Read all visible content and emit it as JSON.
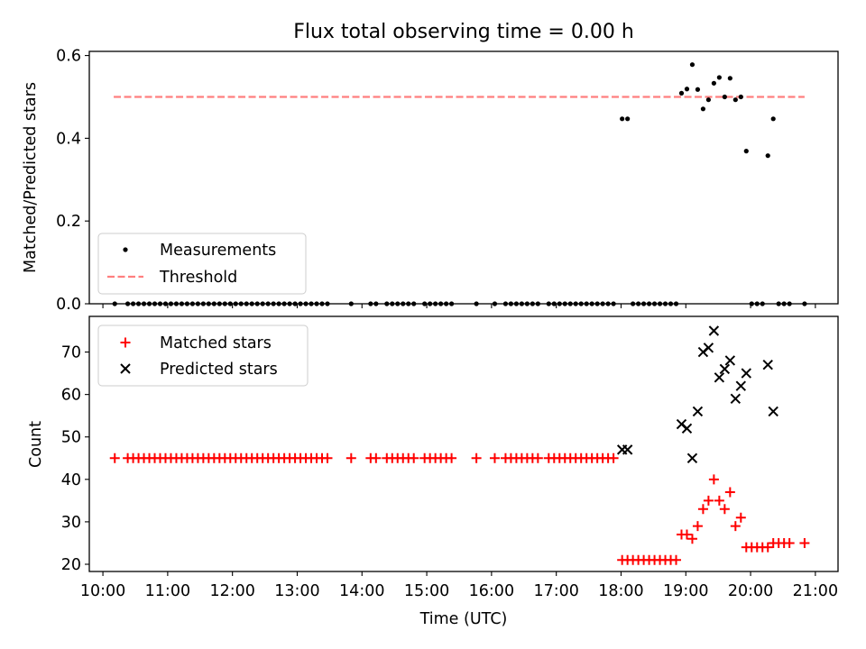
{
  "chart_data": [
    {
      "type": "scatter",
      "title": "Flux total observing time = 0.00 h",
      "ylabel": "Matched/Predicted stars",
      "ylim": [
        0,
        0.61
      ],
      "yticks": [
        0.0,
        0.2,
        0.4,
        0.6
      ],
      "ytick_labels": [
        "0.0",
        "0.2",
        "0.4",
        "0.6"
      ],
      "xlim_hours": [
        9.79,
        21.35
      ],
      "legend_position": "lower-left",
      "legend": {
        "measurements": "Measurements",
        "threshold": "Threshold"
      },
      "threshold": {
        "value": 0.5,
        "x_start": "10:10",
        "x_end": "20:50",
        "color": "#ff7f7f"
      },
      "measurement_color": "#000000",
      "measurements": [
        [
          "10:11",
          0.0
        ],
        [
          "10:23",
          0.0
        ],
        [
          "10:28",
          0.0
        ],
        [
          "10:33",
          0.0
        ],
        [
          "10:38",
          0.0
        ],
        [
          "10:43",
          0.0
        ],
        [
          "10:48",
          0.0
        ],
        [
          "10:53",
          0.0
        ],
        [
          "10:58",
          0.0
        ],
        [
          "11:03",
          0.0
        ],
        [
          "11:08",
          0.0
        ],
        [
          "11:13",
          0.0
        ],
        [
          "11:18",
          0.0
        ],
        [
          "11:23",
          0.0
        ],
        [
          "11:28",
          0.0
        ],
        [
          "11:33",
          0.0
        ],
        [
          "11:38",
          0.0
        ],
        [
          "11:43",
          0.0
        ],
        [
          "11:48",
          0.0
        ],
        [
          "11:53",
          0.0
        ],
        [
          "11:58",
          0.0
        ],
        [
          "12:03",
          0.0
        ],
        [
          "12:08",
          0.0
        ],
        [
          "12:13",
          0.0
        ],
        [
          "12:18",
          0.0
        ],
        [
          "12:23",
          0.0
        ],
        [
          "12:28",
          0.0
        ],
        [
          "12:33",
          0.0
        ],
        [
          "12:38",
          0.0
        ],
        [
          "12:43",
          0.0
        ],
        [
          "12:48",
          0.0
        ],
        [
          "12:53",
          0.0
        ],
        [
          "12:58",
          0.0
        ],
        [
          "13:03",
          0.0
        ],
        [
          "13:08",
          0.0
        ],
        [
          "13:13",
          0.0
        ],
        [
          "13:18",
          0.0
        ],
        [
          "13:23",
          0.0
        ],
        [
          "13:28",
          0.0
        ],
        [
          "13:50",
          0.0
        ],
        [
          "14:08",
          0.0
        ],
        [
          "14:13",
          0.0
        ],
        [
          "14:23",
          0.0
        ],
        [
          "14:28",
          0.0
        ],
        [
          "14:33",
          0.0
        ],
        [
          "14:38",
          0.0
        ],
        [
          "14:43",
          0.0
        ],
        [
          "14:48",
          0.0
        ],
        [
          "14:58",
          0.0
        ],
        [
          "15:03",
          0.0
        ],
        [
          "15:08",
          0.0
        ],
        [
          "15:13",
          0.0
        ],
        [
          "15:18",
          0.0
        ],
        [
          "15:23",
          0.0
        ],
        [
          "15:46",
          0.0
        ],
        [
          "16:03",
          0.0
        ],
        [
          "16:13",
          0.0
        ],
        [
          "16:18",
          0.0
        ],
        [
          "16:23",
          0.0
        ],
        [
          "16:28",
          0.0
        ],
        [
          "16:33",
          0.0
        ],
        [
          "16:38",
          0.0
        ],
        [
          "16:43",
          0.0
        ],
        [
          "16:53",
          0.0
        ],
        [
          "16:58",
          0.0
        ],
        [
          "17:03",
          0.0
        ],
        [
          "17:08",
          0.0
        ],
        [
          "17:13",
          0.0
        ],
        [
          "17:18",
          0.0
        ],
        [
          "17:23",
          0.0
        ],
        [
          "17:28",
          0.0
        ],
        [
          "17:33",
          0.0
        ],
        [
          "17:38",
          0.0
        ],
        [
          "17:43",
          0.0
        ],
        [
          "17:48",
          0.0
        ],
        [
          "17:53",
          0.0
        ],
        [
          "18:01",
          0.447
        ],
        [
          "18:06",
          0.447
        ],
        [
          "18:11",
          0.0
        ],
        [
          "18:16",
          0.0
        ],
        [
          "18:21",
          0.0
        ],
        [
          "18:26",
          0.0
        ],
        [
          "18:31",
          0.0
        ],
        [
          "18:36",
          0.0
        ],
        [
          "18:41",
          0.0
        ],
        [
          "18:46",
          0.0
        ],
        [
          "18:51",
          0.0
        ],
        [
          "18:56",
          0.509
        ],
        [
          "19:01",
          0.519
        ],
        [
          "19:06",
          0.578
        ],
        [
          "19:11",
          0.518
        ],
        [
          "19:16",
          0.471
        ],
        [
          "19:21",
          0.493
        ],
        [
          "19:26",
          0.533
        ],
        [
          "19:31",
          0.547
        ],
        [
          "19:36",
          0.5
        ],
        [
          "19:41",
          0.545
        ],
        [
          "19:46",
          0.493
        ],
        [
          "19:51",
          0.5
        ],
        [
          "19:56",
          0.369
        ],
        [
          "20:01",
          0.0
        ],
        [
          "20:06",
          0.0
        ],
        [
          "20:11",
          0.0
        ],
        [
          "20:16",
          0.358
        ],
        [
          "20:21",
          0.447
        ],
        [
          "20:26",
          0.0
        ],
        [
          "20:31",
          0.0
        ],
        [
          "20:36",
          0.0
        ],
        [
          "20:50",
          0.0
        ]
      ]
    },
    {
      "type": "scatter",
      "xlabel": "Time (UTC)",
      "ylabel": "Count",
      "ylim": [
        18.3,
        78.4
      ],
      "yticks": [
        20,
        30,
        40,
        50,
        60,
        70
      ],
      "ytick_labels": [
        "20",
        "30",
        "40",
        "50",
        "60",
        "70"
      ],
      "xticks": [
        "10:00",
        "11:00",
        "12:00",
        "13:00",
        "14:00",
        "15:00",
        "16:00",
        "17:00",
        "18:00",
        "19:00",
        "20:00",
        "21:00"
      ],
      "xlim_hours": [
        9.79,
        21.35
      ],
      "legend_position": "upper-left",
      "series": [
        {
          "name": "Matched stars",
          "marker": "plus",
          "color": "#ff0000",
          "points": [
            [
              "10:11",
              45
            ],
            [
              "10:23",
              45
            ],
            [
              "10:28",
              45
            ],
            [
              "10:33",
              45
            ],
            [
              "10:38",
              45
            ],
            [
              "10:43",
              45
            ],
            [
              "10:48",
              45
            ],
            [
              "10:53",
              45
            ],
            [
              "10:58",
              45
            ],
            [
              "11:03",
              45
            ],
            [
              "11:08",
              45
            ],
            [
              "11:13",
              45
            ],
            [
              "11:18",
              45
            ],
            [
              "11:23",
              45
            ],
            [
              "11:28",
              45
            ],
            [
              "11:33",
              45
            ],
            [
              "11:38",
              45
            ],
            [
              "11:43",
              45
            ],
            [
              "11:48",
              45
            ],
            [
              "11:53",
              45
            ],
            [
              "11:58",
              45
            ],
            [
              "12:03",
              45
            ],
            [
              "12:08",
              45
            ],
            [
              "12:13",
              45
            ],
            [
              "12:18",
              45
            ],
            [
              "12:23",
              45
            ],
            [
              "12:28",
              45
            ],
            [
              "12:33",
              45
            ],
            [
              "12:38",
              45
            ],
            [
              "12:43",
              45
            ],
            [
              "12:48",
              45
            ],
            [
              "12:53",
              45
            ],
            [
              "12:58",
              45
            ],
            [
              "13:03",
              45
            ],
            [
              "13:08",
              45
            ],
            [
              "13:13",
              45
            ],
            [
              "13:18",
              45
            ],
            [
              "13:23",
              45
            ],
            [
              "13:28",
              45
            ],
            [
              "13:50",
              45
            ],
            [
              "14:08",
              45
            ],
            [
              "14:13",
              45
            ],
            [
              "14:23",
              45
            ],
            [
              "14:28",
              45
            ],
            [
              "14:33",
              45
            ],
            [
              "14:38",
              45
            ],
            [
              "14:43",
              45
            ],
            [
              "14:48",
              45
            ],
            [
              "14:58",
              45
            ],
            [
              "15:03",
              45
            ],
            [
              "15:08",
              45
            ],
            [
              "15:13",
              45
            ],
            [
              "15:18",
              45
            ],
            [
              "15:23",
              45
            ],
            [
              "15:46",
              45
            ],
            [
              "16:03",
              45
            ],
            [
              "16:13",
              45
            ],
            [
              "16:18",
              45
            ],
            [
              "16:23",
              45
            ],
            [
              "16:28",
              45
            ],
            [
              "16:33",
              45
            ],
            [
              "16:38",
              45
            ],
            [
              "16:43",
              45
            ],
            [
              "16:53",
              45
            ],
            [
              "16:58",
              45
            ],
            [
              "17:03",
              45
            ],
            [
              "17:08",
              45
            ],
            [
              "17:13",
              45
            ],
            [
              "17:18",
              45
            ],
            [
              "17:23",
              45
            ],
            [
              "17:28",
              45
            ],
            [
              "17:33",
              45
            ],
            [
              "17:38",
              45
            ],
            [
              "17:43",
              45
            ],
            [
              "17:48",
              45
            ],
            [
              "17:53",
              45
            ],
            [
              "18:01",
              21
            ],
            [
              "18:06",
              21
            ],
            [
              "18:11",
              21
            ],
            [
              "18:16",
              21
            ],
            [
              "18:21",
              21
            ],
            [
              "18:26",
              21
            ],
            [
              "18:31",
              21
            ],
            [
              "18:36",
              21
            ],
            [
              "18:41",
              21
            ],
            [
              "18:46",
              21
            ],
            [
              "18:51",
              21
            ],
            [
              "18:56",
              27
            ],
            [
              "19:01",
              27
            ],
            [
              "19:06",
              26
            ],
            [
              "19:11",
              29
            ],
            [
              "19:16",
              33
            ],
            [
              "19:21",
              35
            ],
            [
              "19:26",
              40
            ],
            [
              "19:31",
              35
            ],
            [
              "19:36",
              33
            ],
            [
              "19:41",
              37
            ],
            [
              "19:46",
              29
            ],
            [
              "19:51",
              31
            ],
            [
              "19:56",
              24
            ],
            [
              "20:01",
              24
            ],
            [
              "20:06",
              24
            ],
            [
              "20:11",
              24
            ],
            [
              "20:16",
              24
            ],
            [
              "20:21",
              25
            ],
            [
              "20:26",
              25
            ],
            [
              "20:31",
              25
            ],
            [
              "20:36",
              25
            ],
            [
              "20:50",
              25
            ]
          ]
        },
        {
          "name": "Predicted stars",
          "marker": "x",
          "color": "#000000",
          "points": [
            [
              "18:01",
              47
            ],
            [
              "18:06",
              47
            ],
            [
              "18:56",
              53
            ],
            [
              "19:01",
              52
            ],
            [
              "19:06",
              45
            ],
            [
              "19:11",
              56
            ],
            [
              "19:16",
              70
            ],
            [
              "19:21",
              71
            ],
            [
              "19:26",
              75
            ],
            [
              "19:31",
              64
            ],
            [
              "19:36",
              66
            ],
            [
              "19:41",
              68
            ],
            [
              "19:46",
              59
            ],
            [
              "19:51",
              62
            ],
            [
              "19:56",
              65
            ],
            [
              "20:16",
              67
            ],
            [
              "20:21",
              56
            ]
          ]
        }
      ]
    }
  ]
}
